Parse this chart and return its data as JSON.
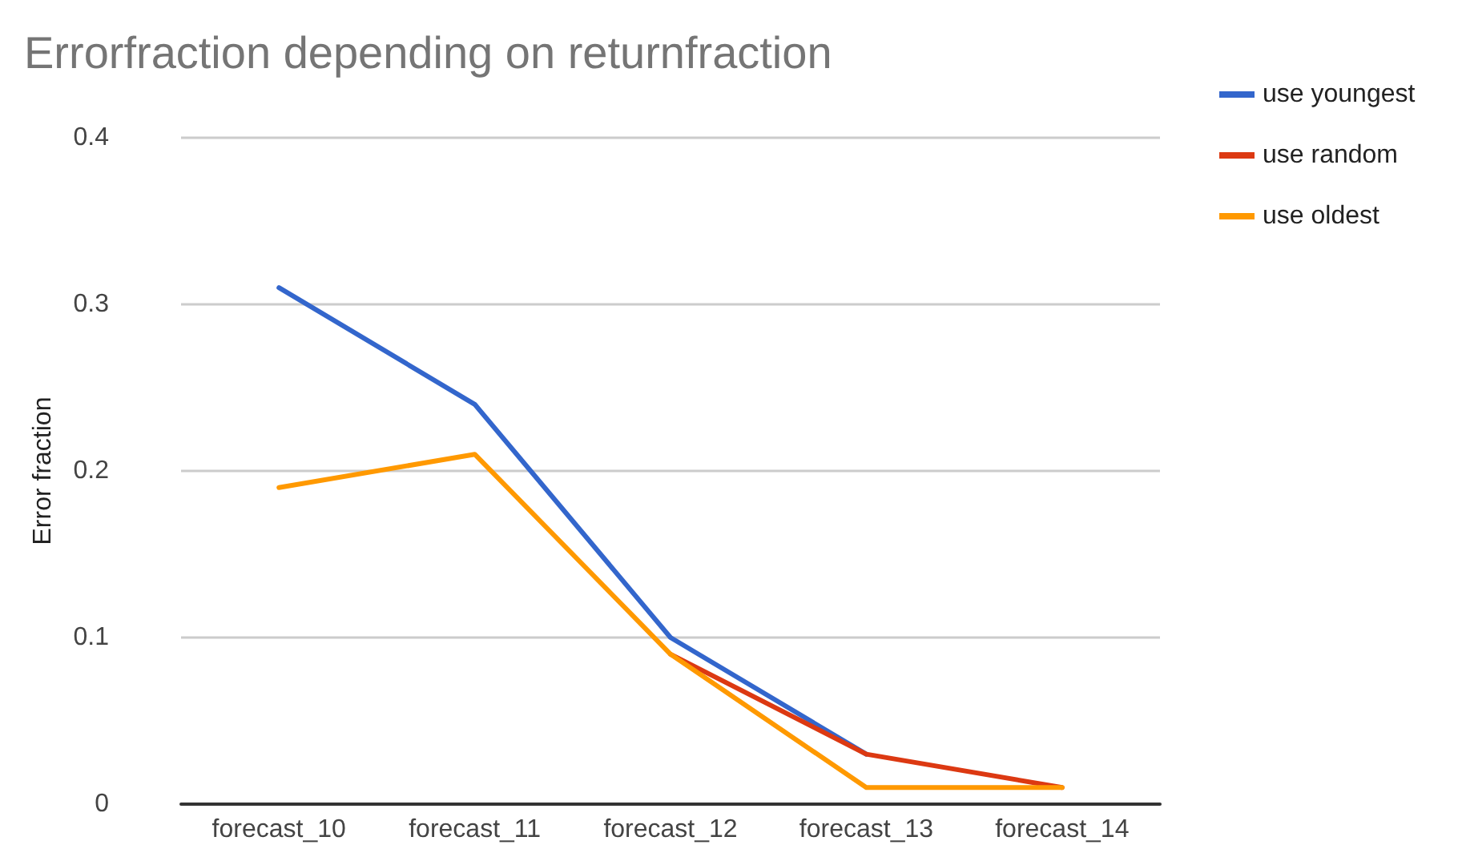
{
  "chart_data": {
    "type": "line",
    "title": "Errorfraction depending on returnfraction",
    "ylabel": "Error fraction",
    "categories": [
      "forecast_10",
      "forecast_11",
      "forecast_12",
      "forecast_13",
      "forecast_14"
    ],
    "series": [
      {
        "name": "use youngest",
        "color": "#3366cc",
        "values": [
          0.31,
          0.24,
          0.1,
          0.03,
          null
        ]
      },
      {
        "name": "use random",
        "color": "#dc3912",
        "values": [
          null,
          null,
          0.09,
          0.03,
          0.01
        ]
      },
      {
        "name": "use oldest",
        "color": "#ff9900",
        "values": [
          0.19,
          0.21,
          0.09,
          0.01,
          0.01
        ]
      }
    ],
    "ylim": [
      0,
      0.4
    ],
    "yticks": [
      0,
      0.1,
      0.2,
      0.3,
      0.4
    ],
    "grid": "y",
    "legend": "right",
    "marker": "none",
    "line_style": "solid"
  }
}
